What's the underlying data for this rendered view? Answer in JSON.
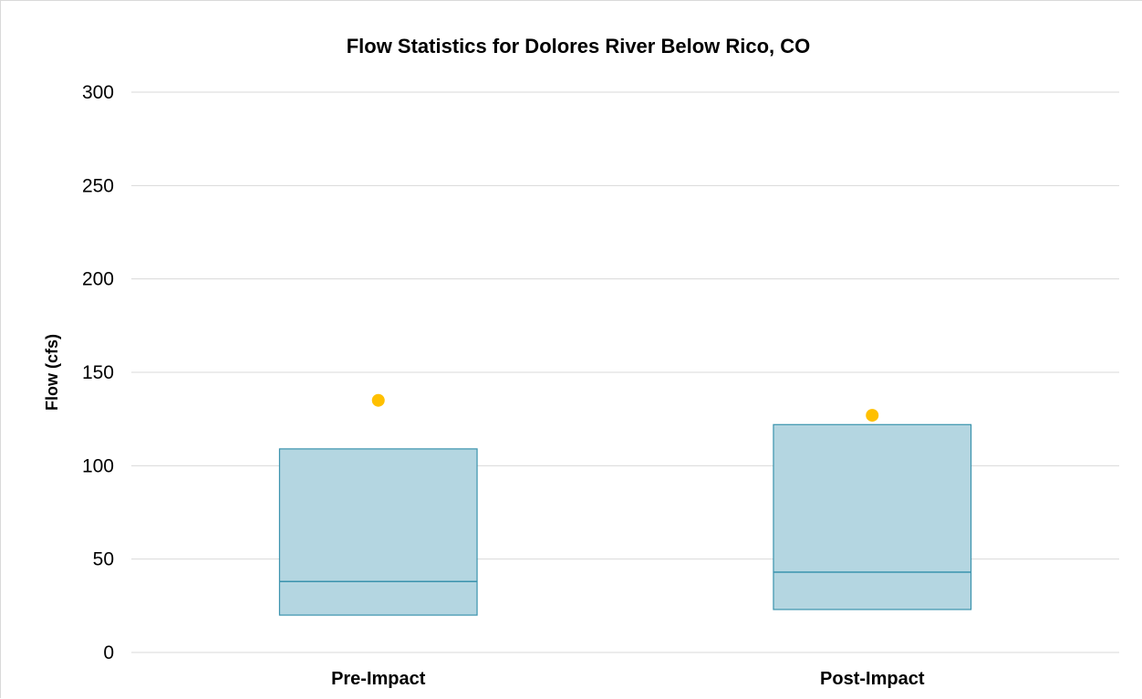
{
  "chart_data": {
    "type": "box",
    "title": "Flow Statistics for Dolores River Below Rico, CO",
    "xlabel": "",
    "ylabel": "Flow (cfs)",
    "ylim": [
      0,
      300
    ],
    "yticks": [
      "0",
      "50",
      "100",
      "150",
      "200",
      "250",
      "300"
    ],
    "grid": true,
    "categories": [
      "Pre-Impact",
      "Post-Impact"
    ],
    "boxes": [
      {
        "category": "Pre-Impact",
        "q1": 20,
        "median": 38,
        "q3": 109,
        "mean": 135
      },
      {
        "category": "Post-Impact",
        "q1": 23,
        "median": 43,
        "q3": 122,
        "mean": 127
      }
    ],
    "colors": {
      "box_fill": "#b4d6e1",
      "box_stroke": "#3a93ad",
      "mean_marker": "#ffc000",
      "grid": "#d9d9d9"
    }
  }
}
